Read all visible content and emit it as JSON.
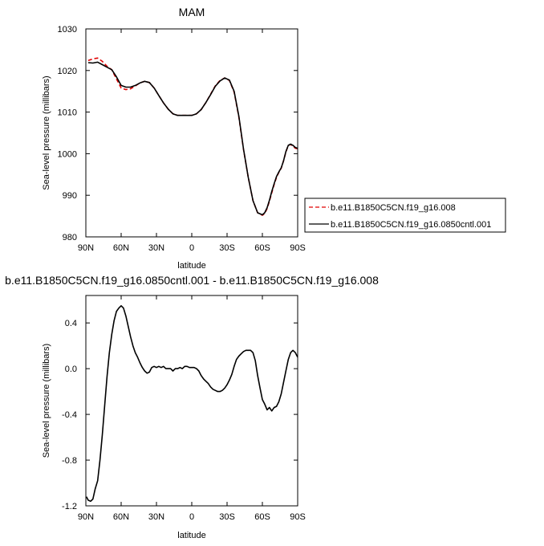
{
  "chart_data": [
    {
      "type": "line",
      "title": "MAM",
      "xlabel": "latitude",
      "ylabel": "Sea-level pressure (millibars)",
      "xlim": [
        90,
        -90
      ],
      "ylim": [
        980,
        1030
      ],
      "x_ticks": [
        90,
        60,
        30,
        0,
        -30,
        -60,
        -90
      ],
      "x_tick_labels": [
        "90N",
        "60N",
        "30N",
        "0",
        "30S",
        "60S",
        "90S"
      ],
      "y_ticks": [
        980,
        990,
        1000,
        1010,
        1020,
        1030
      ],
      "y_tick_labels": [
        "980",
        "990",
        "1000",
        "1010",
        "1020",
        "1030"
      ],
      "legend_position": "outside-right",
      "series": [
        {
          "name": "b.e11.B1850C5CN.f19_g16.008",
          "color": "#e00000",
          "dash": "dashed",
          "x": [
            88,
            84,
            80,
            76,
            72,
            68,
            64,
            60,
            56,
            52,
            48,
            44,
            40,
            36,
            32,
            28,
            24,
            20,
            16,
            12,
            8,
            4,
            0,
            -4,
            -8,
            -12,
            -16,
            -20,
            -24,
            -28,
            -32,
            -36,
            -40,
            -44,
            -48,
            -52,
            -56,
            -60,
            -62,
            -64,
            -66,
            -68,
            -70,
            -72,
            -74,
            -76,
            -78,
            -80,
            -82,
            -84,
            -86,
            -88,
            -90
          ],
          "y": [
            1022.4,
            1022.8,
            1023.0,
            1022.2,
            1021.0,
            1020.2,
            1018.0,
            1015.8,
            1015.4,
            1015.6,
            1016.3,
            1017.0,
            1017.4,
            1017.1,
            1015.8,
            1014.0,
            1012.2,
            1010.7,
            1009.6,
            1009.2,
            1009.2,
            1009.2,
            1009.2,
            1009.6,
            1010.6,
            1012.3,
            1014.3,
            1016.3,
            1017.6,
            1018.2,
            1017.6,
            1014.8,
            1008.8,
            1001.0,
            994.3,
            988.7,
            985.8,
            985.2,
            985.6,
            986.8,
            988.6,
            990.6,
            992.6,
            994.3,
            995.5,
            996.5,
            998.3,
            1000.4,
            1002.0,
            1002.2,
            1001.8,
            1001.3,
            1001.2
          ]
        },
        {
          "name": "b.e11.B1850C5CN.f19_g16.0850cntl.001",
          "color": "#000000",
          "dash": "solid",
          "x": [
            88,
            84,
            80,
            76,
            72,
            68,
            64,
            60,
            56,
            52,
            48,
            44,
            40,
            36,
            32,
            28,
            24,
            20,
            16,
            12,
            8,
            4,
            0,
            -4,
            -8,
            -12,
            -16,
            -20,
            -24,
            -28,
            -32,
            -36,
            -40,
            -44,
            -48,
            -52,
            -56,
            -60,
            -62,
            -64,
            -66,
            -68,
            -70,
            -72,
            -74,
            -76,
            -78,
            -80,
            -82,
            -84,
            -86,
            -88,
            -90
          ],
          "y": [
            1021.9,
            1021.8,
            1022.0,
            1021.4,
            1020.8,
            1020.2,
            1018.5,
            1016.4,
            1016.0,
            1016.0,
            1016.4,
            1017.0,
            1017.4,
            1017.1,
            1015.8,
            1014.0,
            1012.2,
            1010.7,
            1009.6,
            1009.2,
            1009.2,
            1009.2,
            1009.2,
            1009.6,
            1010.6,
            1012.3,
            1014.2,
            1016.2,
            1017.5,
            1018.2,
            1017.7,
            1015.0,
            1009.0,
            1001.1,
            994.3,
            988.7,
            985.8,
            985.3,
            985.8,
            987.0,
            988.8,
            990.9,
            992.8,
            994.5,
            995.6,
            996.6,
            998.3,
            1000.5,
            1002.0,
            1002.3,
            1002.0,
            1001.5,
            1001.3
          ]
        }
      ]
    },
    {
      "type": "line",
      "title": "b.e11.B1850C5CN.f19_g16.0850cntl.001 - b.e11.B1850C5CN.f19_g16.008",
      "xlabel": "latitude",
      "ylabel": "Sea-level pressure (millibars)",
      "xlim": [
        90,
        -90
      ],
      "ylim": [
        -1.2,
        0.64
      ],
      "x_ticks": [
        90,
        60,
        30,
        0,
        -30,
        -60,
        -90
      ],
      "x_tick_labels": [
        "90N",
        "60N",
        "30N",
        "0",
        "30S",
        "60S",
        "90S"
      ],
      "y_ticks": [
        -1.2,
        -0.8,
        -0.4,
        0.0,
        0.4
      ],
      "y_tick_labels": [
        "-1.2",
        "-0.8",
        "-0.4",
        "0.0",
        "0.4"
      ],
      "series": [
        {
          "color": "#000000",
          "dash": "solid",
          "x": [
            89.5,
            88,
            86,
            84,
            82,
            80,
            78,
            76,
            74,
            72,
            70,
            68,
            66,
            64,
            62,
            60,
            58,
            56,
            54,
            52,
            50,
            48,
            46,
            44,
            42,
            40,
            38,
            36,
            34,
            32,
            30,
            28,
            26,
            24,
            22,
            20,
            18,
            16,
            14,
            12,
            10,
            8,
            6,
            4,
            2,
            0,
            -2,
            -4,
            -6,
            -8,
            -10,
            -12,
            -14,
            -16,
            -18,
            -20,
            -22,
            -24,
            -26,
            -28,
            -30,
            -32,
            -34,
            -36,
            -38,
            -40,
            -42,
            -44,
            -46,
            -48,
            -50,
            -52,
            -54,
            -56,
            -58,
            -60,
            -62,
            -64,
            -66,
            -68,
            -70,
            -72,
            -74,
            -76,
            -78,
            -80,
            -82,
            -84,
            -86,
            -88,
            -89,
            -90
          ],
          "y": [
            -1.12,
            -1.15,
            -1.16,
            -1.14,
            -1.05,
            -0.98,
            -0.8,
            -0.58,
            -0.32,
            -0.07,
            0.14,
            0.3,
            0.42,
            0.5,
            0.53,
            0.55,
            0.53,
            0.46,
            0.37,
            0.28,
            0.2,
            0.14,
            0.1,
            0.05,
            0.01,
            -0.02,
            -0.04,
            -0.03,
            0.01,
            0.02,
            0.01,
            0.02,
            0.01,
            0.02,
            0.0,
            0.0,
            0.0,
            -0.02,
            0.0,
            0.0,
            0.01,
            0.0,
            0.02,
            0.02,
            0.01,
            0.01,
            0.01,
            0.0,
            -0.02,
            -0.06,
            -0.09,
            -0.11,
            -0.13,
            -0.16,
            -0.18,
            -0.19,
            -0.2,
            -0.2,
            -0.19,
            -0.17,
            -0.14,
            -0.1,
            -0.05,
            0.02,
            0.08,
            0.11,
            0.13,
            0.15,
            0.16,
            0.16,
            0.16,
            0.14,
            0.07,
            -0.06,
            -0.17,
            -0.27,
            -0.31,
            -0.36,
            -0.34,
            -0.37,
            -0.34,
            -0.33,
            -0.29,
            -0.22,
            -0.12,
            -0.02,
            0.08,
            0.14,
            0.16,
            0.14,
            0.12,
            0.1
          ]
        }
      ]
    }
  ]
}
